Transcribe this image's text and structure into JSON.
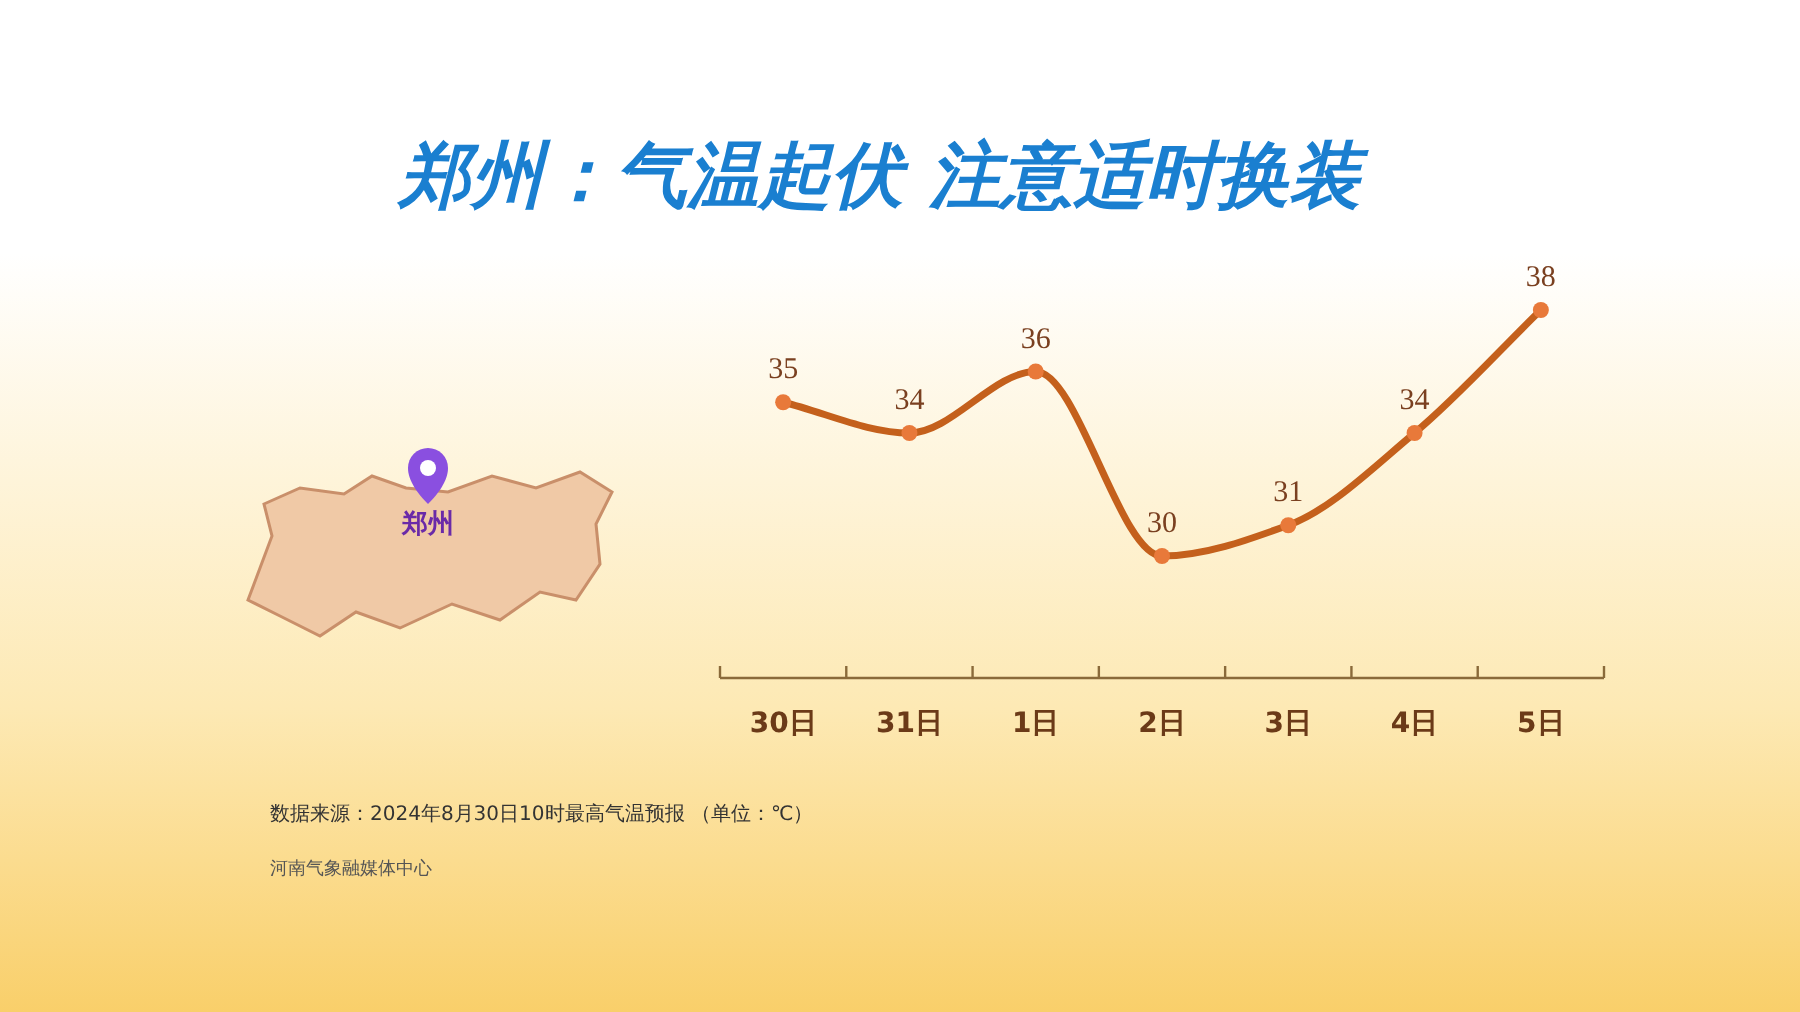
{
  "chart_data": {
    "type": "line",
    "title": "郑州：气温起伏 注意适时换装",
    "categories": [
      "30日",
      "31日",
      "1日",
      "2日",
      "3日",
      "4日",
      "5日"
    ],
    "series": [
      {
        "color": "#c4601c",
        "values": [
          35,
          34,
          36,
          30,
          31,
          34,
          38
        ]
      }
    ],
    "data_labels": true,
    "marker": "circle",
    "line_style": "solid",
    "annotations": [
      "郑州",
      "数据来源：2024年8月30日10时最高气温预报 （单位：℃）",
      "河南气象融媒体中心"
    ]
  }
}
